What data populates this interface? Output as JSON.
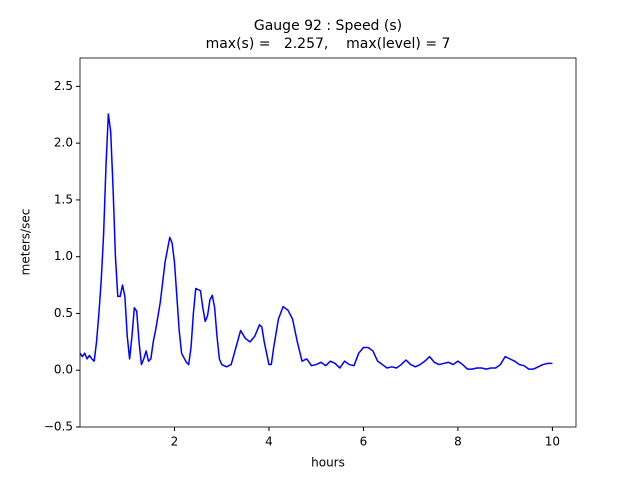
{
  "chart_data": {
    "type": "line",
    "title": "Gauge 92 : Speed (s)",
    "subtitle": "max(s) =   2.257,    max(level) = 7",
    "x_label": "hours",
    "y_label": "meters/sec",
    "color": "#0000ff",
    "grid": false,
    "xlim": [
      0,
      10.5
    ],
    "xticks": [
      2,
      4,
      6,
      8,
      10
    ],
    "ylim": [
      -0.5,
      2.75
    ],
    "yticks": [
      {
        "value": -0.5,
        "label": "−0.5"
      },
      {
        "value": 0,
        "label": "0.0"
      },
      0.5,
      {
        "value": 1,
        "label": "1.0"
      },
      1.5,
      {
        "value": 2,
        "label": "2.0"
      },
      2.5
    ],
    "x": [
      0.0,
      0.05,
      0.1,
      0.15,
      0.2,
      0.25,
      0.3,
      0.35,
      0.4,
      0.45,
      0.5,
      0.55,
      0.6,
      0.65,
      0.7,
      0.75,
      0.8,
      0.85,
      0.9,
      0.95,
      1.0,
      1.05,
      1.1,
      1.15,
      1.2,
      1.25,
      1.3,
      1.35,
      1.4,
      1.45,
      1.5,
      1.55,
      1.6,
      1.7,
      1.8,
      1.9,
      1.95,
      2.0,
      2.05,
      2.1,
      2.15,
      2.25,
      2.3,
      2.35,
      2.4,
      2.45,
      2.55,
      2.6,
      2.65,
      2.7,
      2.75,
      2.8,
      2.85,
      2.9,
      2.95,
      3.0,
      3.1,
      3.2,
      3.3,
      3.4,
      3.5,
      3.6,
      3.7,
      3.8,
      3.85,
      3.9,
      4.0,
      4.05,
      4.1,
      4.2,
      4.3,
      4.4,
      4.5,
      4.6,
      4.7,
      4.8,
      4.9,
      5.0,
      5.1,
      5.2,
      5.3,
      5.4,
      5.5,
      5.6,
      5.7,
      5.8,
      5.9,
      6.0,
      6.1,
      6.2,
      6.3,
      6.4,
      6.5,
      6.6,
      6.7,
      6.8,
      6.9,
      7.0,
      7.1,
      7.2,
      7.3,
      7.4,
      7.5,
      7.6,
      7.7,
      7.8,
      7.9,
      8.0,
      8.1,
      8.2,
      8.3,
      8.4,
      8.5,
      8.6,
      8.7,
      8.8,
      8.9,
      9.0,
      9.1,
      9.2,
      9.3,
      9.4,
      9.5,
      9.6,
      9.7,
      9.8,
      9.9,
      10.0
    ],
    "values": [
      0.15,
      0.12,
      0.15,
      0.1,
      0.13,
      0.1,
      0.08,
      0.25,
      0.5,
      0.8,
      1.2,
      1.8,
      2.257,
      2.1,
      1.6,
      1.0,
      0.65,
      0.65,
      0.75,
      0.65,
      0.3,
      0.1,
      0.3,
      0.55,
      0.52,
      0.25,
      0.05,
      0.1,
      0.17,
      0.08,
      0.1,
      0.25,
      0.35,
      0.6,
      0.95,
      1.17,
      1.12,
      0.95,
      0.65,
      0.35,
      0.15,
      0.07,
      0.05,
      0.2,
      0.5,
      0.72,
      0.7,
      0.55,
      0.43,
      0.48,
      0.62,
      0.66,
      0.55,
      0.3,
      0.1,
      0.05,
      0.03,
      0.05,
      0.2,
      0.35,
      0.28,
      0.25,
      0.3,
      0.4,
      0.38,
      0.25,
      0.05,
      0.05,
      0.2,
      0.45,
      0.56,
      0.53,
      0.45,
      0.25,
      0.08,
      0.1,
      0.04,
      0.05,
      0.07,
      0.04,
      0.08,
      0.06,
      0.02,
      0.08,
      0.05,
      0.04,
      0.15,
      0.2,
      0.2,
      0.17,
      0.08,
      0.05,
      0.02,
      0.03,
      0.02,
      0.05,
      0.09,
      0.05,
      0.03,
      0.05,
      0.08,
      0.12,
      0.07,
      0.05,
      0.06,
      0.07,
      0.05,
      0.08,
      0.05,
      0.01,
      0.01,
      0.02,
      0.02,
      0.01,
      0.02,
      0.02,
      0.05,
      0.12,
      0.1,
      0.08,
      0.05,
      0.04,
      0.01,
      0.01,
      0.03,
      0.05,
      0.06,
      0.06
    ]
  }
}
